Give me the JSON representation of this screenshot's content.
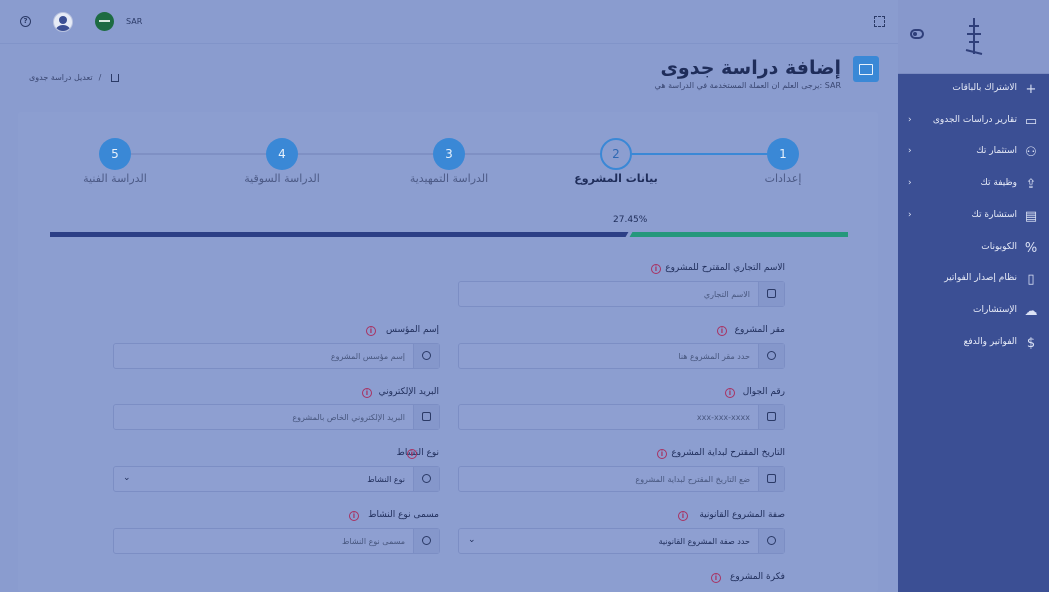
{
  "topbar": {
    "currency": "SAR",
    "help_icon": "help-circle-icon",
    "avatar_icon": "user-avatar-icon",
    "flag_icon": "saudi-flag-icon",
    "fullscreen_icon": "fullscreen-icon"
  },
  "sidebar": {
    "logo_icon": "brand-logo-icon",
    "toggle_icon": "sidebar-toggle-icon",
    "items": [
      {
        "label": "الاشتراك بالباقات",
        "icon": "plus-icon",
        "chevron": false
      },
      {
        "label": "تقارير دراسات الجدوى",
        "icon": "briefcase-icon",
        "chevron": true
      },
      {
        "label": "استثمار تك",
        "icon": "users-icon",
        "chevron": true
      },
      {
        "label": "وظيفة تك",
        "icon": "user-upload-icon",
        "chevron": true
      },
      {
        "label": "استشارة تك",
        "icon": "id-card-icon",
        "chevron": true
      },
      {
        "label": "الكوبونات",
        "icon": "percent-icon",
        "chevron": false
      },
      {
        "label": "نظام إصدار الفواتير",
        "icon": "document-icon",
        "chevron": false
      },
      {
        "label": "الإستشارات",
        "icon": "chat-icon",
        "chevron": false
      },
      {
        "label": "الفواتير والدفع",
        "icon": "dollar-icon",
        "chevron": false
      }
    ]
  },
  "header": {
    "title": "إضافة دراسة جدوى",
    "subtitle": "يرجى العلم ان العملة المستخدمة في الدراسة هي: SAR",
    "breadcrumb_current": "تعديل دراسة جدوى",
    "breadcrumb_sep": "/",
    "home_icon": "home-icon",
    "page_icon": "briefcase-icon"
  },
  "stepper": {
    "steps": [
      {
        "number": "1",
        "label": "إعدادات",
        "state": "done"
      },
      {
        "number": "2",
        "label": "بيانات المشروع",
        "state": "current"
      },
      {
        "number": "3",
        "label": "الدراسة التمهيدية",
        "state": "todo"
      },
      {
        "number": "4",
        "label": "الدراسة السوقية",
        "state": "todo"
      },
      {
        "number": "5",
        "label": "الدراسة الفنية",
        "state": "todo"
      }
    ]
  },
  "progress": {
    "text": "27.45%",
    "value_percent": 27.45
  },
  "form": {
    "commercial_name": {
      "label": "الاسم التجاري المقترح للمشروع",
      "placeholder": "الاسم التجاري",
      "icon": "bookmark-icon"
    },
    "project_location": {
      "label": "مقر المشروع",
      "placeholder": "حدد مقر المشروع هنا",
      "icon": "location-pin-icon"
    },
    "founder_name": {
      "label": "إسم المؤسس",
      "placeholder": "إسم مؤسس المشروع",
      "icon": "user-icon"
    },
    "mobile": {
      "label": "رقم الجوال",
      "placeholder": "xxx-xxx-xxxx",
      "icon": "phone-icon"
    },
    "email": {
      "label": "البريد الإلكتروني",
      "placeholder": "البريد الإلكتروني الخاص بالمشروع",
      "icon": "send-icon"
    },
    "start_date": {
      "label": "التاريخ المقترح لبداية المشروع",
      "placeholder": "ضع التاريخ المقترح لبداية المشروع",
      "icon": "calendar-icon"
    },
    "activity_type": {
      "label": "نوع النشاط",
      "value": "نوع النشاط",
      "icon": "check-circle-icon"
    },
    "legal_form": {
      "label": "صفة المشروع القانونية",
      "value": "حدد صفة المشروع القانونية",
      "icon": "award-icon"
    },
    "activity_type_name": {
      "label": "مسمى نوع النشاط",
      "placeholder": "مسمى نوع النشاط",
      "icon": "user-icon"
    },
    "project_idea": {
      "label": "فكرة المشروع"
    }
  },
  "colors": {
    "sidebar": "#3b4f94",
    "primary": "#3a88d6",
    "progress_fill": "#25987c",
    "info": "#a83262"
  }
}
